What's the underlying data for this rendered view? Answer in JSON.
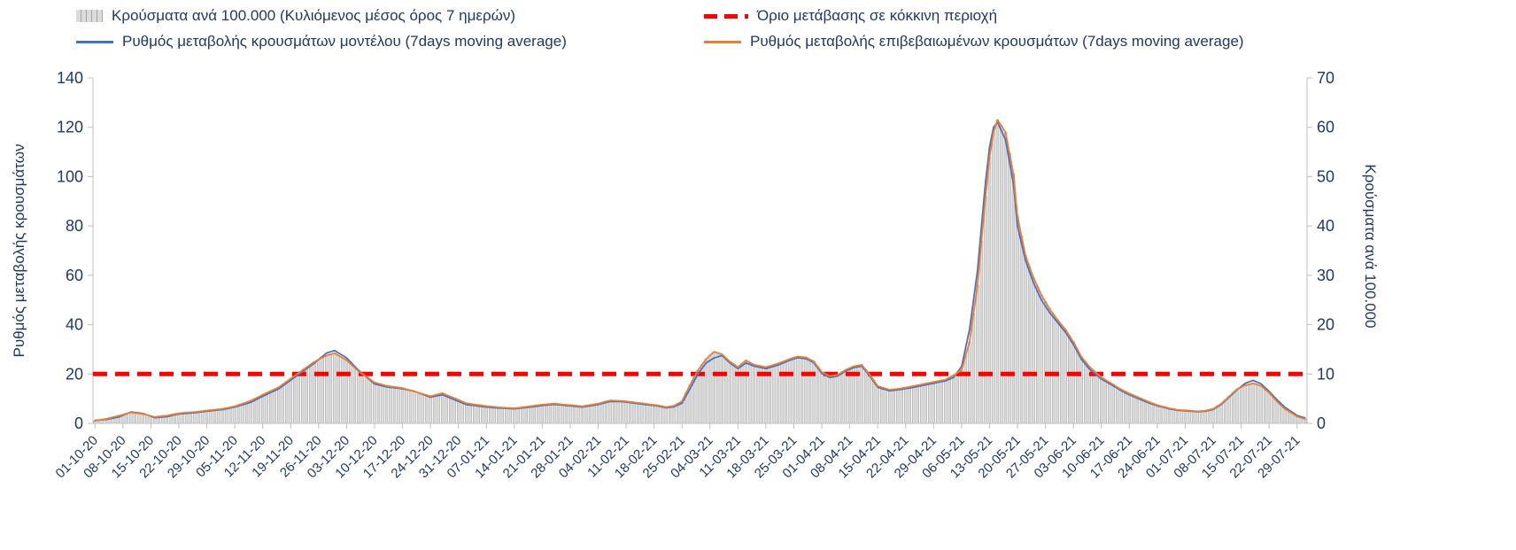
{
  "chart_data": {
    "type": "combo-bar-line",
    "title": "",
    "legend_position": "top",
    "grid": false,
    "background": "#FFFFFF",
    "text_color": "#1F3864",
    "axis_color": "#BFBFBF",
    "x_axis": {
      "days_per_tick": 7,
      "total_days": 304,
      "tick_labels": [
        "01-10-20",
        "08-10-20",
        "15-10-20",
        "22-10-20",
        "29-10-20",
        "05-11-20",
        "12-11-20",
        "19-11-20",
        "26-11-20",
        "03-12-20",
        "10-12-20",
        "17-12-20",
        "24-12-20",
        "31-12-20",
        "07-01-21",
        "14-01-21",
        "21-01-21",
        "28-01-21",
        "04-02-21",
        "11-02-21",
        "18-02-21",
        "25-02-21",
        "04-03-21",
        "11-03-21",
        "18-03-21",
        "25-03-21",
        "01-04-21",
        "08-04-21",
        "15-04-21",
        "22-04-21",
        "29-04-21",
        "06-05-21",
        "13-05-21",
        "20-05-21",
        "27-05-21",
        "03-06-21",
        "10-06-21",
        "17-06-21",
        "24-06-21",
        "01-07-21",
        "08-07-21",
        "15-07-21",
        "22-07-21",
        "29-07-21"
      ]
    },
    "y_left": {
      "title": "Ρυθμός μεταβολής κρουσμάτων",
      "min": 0,
      "max": 140,
      "ticks": [
        0,
        20,
        40,
        60,
        80,
        100,
        120,
        140
      ]
    },
    "y_right": {
      "title": "Κρούσματα ανά 100.000",
      "min": 0,
      "max": 70,
      "ticks": [
        0,
        10,
        20,
        30,
        40,
        50,
        60,
        70
      ]
    },
    "threshold": {
      "label": "Όριο μετάβασης σε κόκκινη περιοχή",
      "value_left_axis": 20,
      "value_right_axis": 10,
      "color": "#FF0000"
    },
    "keypoint_days": [
      0,
      3,
      6,
      9,
      12,
      15,
      18,
      21,
      25,
      28,
      32,
      35,
      39,
      42,
      46,
      49,
      52,
      55,
      58,
      60,
      63,
      66,
      70,
      73,
      77,
      80,
      84,
      87,
      90,
      93,
      98,
      101,
      105,
      108,
      112,
      115,
      119,
      122,
      126,
      129,
      132,
      135,
      138,
      141,
      143,
      145,
      147,
      149,
      151,
      153,
      155,
      157,
      159,
      161,
      163,
      165,
      168,
      171,
      174,
      176,
      178,
      180,
      182,
      184,
      186,
      188,
      190,
      192,
      194,
      196,
      199,
      202,
      205,
      208,
      211,
      213,
      215,
      217,
      219,
      221,
      223,
      224,
      225,
      226,
      228,
      230,
      231,
      233,
      235,
      237,
      239,
      241,
      243,
      245,
      247,
      249,
      252,
      255,
      257,
      259,
      261,
      264,
      266,
      269,
      271,
      273,
      276,
      278,
      280,
      282,
      284,
      286,
      288,
      290,
      292,
      294,
      296,
      298,
      301,
      303
    ],
    "series": [
      {
        "name": "Κρούσματα ανά 100.000 (Κυλιόμενος μέσος όρος 7 ημερών)",
        "type": "bar",
        "axis": "right",
        "fill": "#DCDCDC",
        "stroke": "#A6A6A6",
        "values": [
          0.5,
          1.0,
          1.6,
          2.2,
          1.9,
          1.3,
          1.6,
          2.1,
          2.3,
          2.6,
          3.0,
          3.5,
          4.6,
          5.8,
          7.3,
          9.1,
          10.8,
          12.5,
          13.8,
          14.2,
          12.8,
          10.6,
          8.3,
          7.6,
          7.2,
          6.5,
          5.5,
          6.1,
          5.1,
          4.1,
          3.5,
          3.3,
          3.1,
          3.4,
          3.8,
          4.0,
          3.7,
          3.5,
          4.0,
          4.7,
          4.6,
          4.3,
          4.0,
          3.7,
          3.3,
          3.6,
          4.5,
          7.8,
          10.8,
          13.0,
          14.5,
          14.0,
          12.5,
          11.4,
          12.8,
          11.9,
          11.4,
          12.1,
          13.1,
          13.6,
          13.4,
          12.6,
          10.4,
          9.6,
          9.9,
          10.9,
          11.6,
          11.9,
          9.9,
          7.6,
          6.8,
          7.1,
          7.6,
          8.1,
          8.6,
          8.9,
          9.8,
          10.8,
          16.5,
          28,
          46,
          54,
          59,
          61.5,
          59,
          50.5,
          42,
          34,
          29.5,
          26,
          23.3,
          21,
          19,
          16.5,
          13.5,
          11.5,
          9.3,
          7.9,
          6.9,
          6.1,
          5.4,
          4.3,
          3.7,
          3.1,
          2.8,
          2.7,
          2.5,
          2.6,
          3.0,
          4.0,
          5.5,
          7.0,
          7.7,
          8.1,
          7.6,
          6.2,
          4.4,
          2.9,
          1.4,
          0.9
        ]
      },
      {
        "name": "Ρυθμός μεταβολής κρουσμάτων μοντέλου (7days moving average)",
        "type": "line",
        "axis": "left",
        "color": "#4472C4",
        "values": [
          1.2,
          1.6,
          2.6,
          4.6,
          4.0,
          2.3,
          2.7,
          3.8,
          4.3,
          4.9,
          5.6,
          6.6,
          8.5,
          11,
          14,
          17.5,
          21,
          24.5,
          28.5,
          29.5,
          26.5,
          21.5,
          16,
          14.8,
          14,
          13,
          10.6,
          11.6,
          9.6,
          7.6,
          6.6,
          6.2,
          5.9,
          6.4,
          7.2,
          7.7,
          7.1,
          6.6,
          7.6,
          8.9,
          8.8,
          8.2,
          7.6,
          7.0,
          6.3,
          6.7,
          8.2,
          14,
          20,
          24.5,
          26.5,
          27.5,
          24.5,
          22.2,
          24.5,
          23.2,
          22.2,
          23.6,
          25.6,
          26.6,
          26.2,
          24.6,
          20.2,
          18.6,
          19.2,
          21.2,
          22.6,
          23.2,
          19.2,
          14.6,
          13.2,
          13.8,
          14.6,
          15.6,
          16.6,
          17.2,
          18.6,
          23,
          38,
          62,
          98,
          112,
          120,
          122,
          115,
          97,
          80,
          66,
          57,
          50,
          45,
          41,
          37,
          32,
          26,
          22,
          18,
          15.2,
          13.2,
          11.6,
          10.2,
          8.2,
          7.1,
          5.9,
          5.3,
          5.1,
          4.7,
          4.9,
          5.6,
          7.6,
          10.6,
          13.6,
          16.2,
          17.4,
          16,
          13,
          9.5,
          6.5,
          3.2,
          2.2
        ]
      },
      {
        "name": "Ρυθμός μεταβολής επιβεβαιωμένων κρουσμάτων (7days moving average)",
        "type": "line",
        "axis": "left",
        "color": "#ED7D31",
        "values": [
          1.0,
          1.9,
          3.1,
          4.4,
          3.8,
          2.6,
          3.1,
          4.1,
          4.6,
          5.2,
          5.9,
          6.9,
          9.1,
          11.6,
          14.6,
          18.1,
          21.6,
          25,
          27.5,
          28.4,
          25.6,
          21.1,
          16.6,
          15.2,
          14.3,
          12.9,
          11,
          12.2,
          10.2,
          8.1,
          7.0,
          6.5,
          6.1,
          6.7,
          7.6,
          8.0,
          7.4,
          6.9,
          8.0,
          9.3,
          9.1,
          8.5,
          7.9,
          7.3,
          6.6,
          7.1,
          9.0,
          15.5,
          21.5,
          26,
          29,
          28,
          25,
          22.8,
          25.5,
          23.8,
          22.8,
          24.2,
          26.1,
          27.1,
          26.7,
          25.1,
          20.8,
          19.1,
          19.7,
          21.7,
          23.1,
          23.7,
          19.7,
          15.1,
          13.6,
          14.2,
          15.1,
          16.1,
          17.1,
          17.7,
          19.5,
          21.5,
          33,
          56,
          92,
          108,
          118,
          123,
          118,
          101,
          84,
          68,
          59,
          52,
          46.5,
          42,
          38,
          33,
          27,
          23,
          18.6,
          15.7,
          13.7,
          12.1,
          10.7,
          8.6,
          7.4,
          6.1,
          5.5,
          5.3,
          4.9,
          5.1,
          5.9,
          7.9,
          10.9,
          13.9,
          15.4,
          16.2,
          15.2,
          12.4,
          8.8,
          5.8,
          2.8,
          1.8
        ]
      }
    ]
  }
}
